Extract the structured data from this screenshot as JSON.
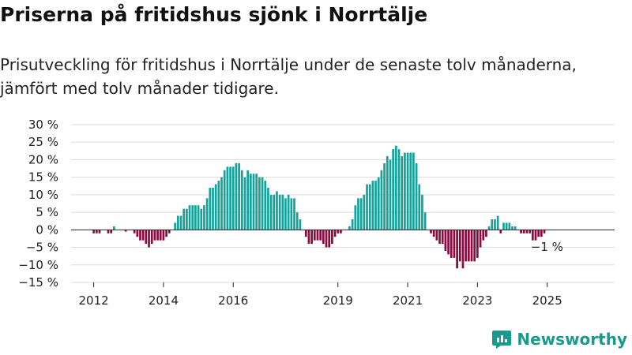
{
  "title": "Priserna på fritidshus sjönk i Norrtälje",
  "subtitle": {
    "line1": "Prisutveckling för fritidshus i Norrtälje under de senaste tolv månaderna,",
    "line2": "jämfört med tolv månader tidigare."
  },
  "brand": {
    "name": "Newsworthy",
    "color": "#1a9a8f"
  },
  "colors": {
    "positive": "#13a39a",
    "negative": "#8b0a3f",
    "grid": "#dcdcdc",
    "zero": "#222222"
  },
  "chart_data": {
    "type": "bar",
    "title": "Priserna på fritidshus sjönk i Norrtälje",
    "xlabel": "",
    "ylabel": "",
    "unit": "%",
    "ylim": [
      -15,
      30
    ],
    "yticks": [
      30,
      25,
      20,
      15,
      10,
      5,
      0,
      -5,
      -10,
      -15
    ],
    "ytick_labels": [
      "30 %",
      "25 %",
      "20 %",
      "15 %",
      "10 %",
      "5 %",
      "0 %",
      "−5 %",
      "−10 %",
      "−15 %"
    ],
    "xticks": [
      {
        "label": "2012",
        "index": 7
      },
      {
        "label": "2014",
        "index": 31
      },
      {
        "label": "2016",
        "index": 55
      },
      {
        "label": "2019",
        "index": 91
      },
      {
        "label": "2021",
        "index": 115
      },
      {
        "label": "2023",
        "index": 139
      },
      {
        "label": "2025",
        "index": 163
      }
    ],
    "start": "2011-06",
    "frequency": "monthly",
    "values": [
      0,
      0,
      0,
      0,
      0,
      0,
      0,
      -1,
      -1,
      -1,
      0,
      0,
      -1,
      -1,
      1,
      0,
      0,
      0,
      -0.5,
      0,
      0,
      -1,
      -2,
      -3,
      -3,
      -4,
      -5,
      -4,
      -3,
      -3,
      -3,
      -3,
      -2,
      -1,
      0,
      2,
      4,
      4,
      6,
      6,
      7,
      7,
      7,
      7,
      6,
      7,
      9,
      12,
      12,
      13,
      14,
      15,
      17,
      18,
      18,
      18,
      19,
      19,
      17,
      15,
      17,
      16,
      16,
      16,
      15,
      15,
      14,
      12,
      10,
      10,
      11,
      10,
      10,
      9,
      10,
      9,
      9,
      5,
      3,
      0,
      -2,
      -4,
      -4,
      -3,
      -3,
      -3,
      -4,
      -5,
      -5,
      -4,
      -2,
      -1,
      -1,
      0,
      0,
      1,
      3,
      7,
      9,
      9,
      10,
      13,
      13,
      14,
      14,
      15,
      17,
      19,
      21,
      20,
      23,
      24,
      23,
      21,
      22,
      22,
      22,
      22,
      19,
      13,
      10,
      5,
      0,
      -1,
      -2,
      -3,
      -4,
      -4,
      -6,
      -7,
      -8,
      -8,
      -11,
      -9,
      -11,
      -9,
      -9,
      -9,
      -9,
      -8,
      -5,
      -3,
      -2,
      1,
      3,
      3,
      4,
      -1,
      2,
      2,
      2,
      1,
      1,
      0,
      -1,
      -1,
      -1,
      -1,
      -3,
      -3,
      -2,
      -2,
      -1
    ],
    "last_label": "−1 %"
  }
}
